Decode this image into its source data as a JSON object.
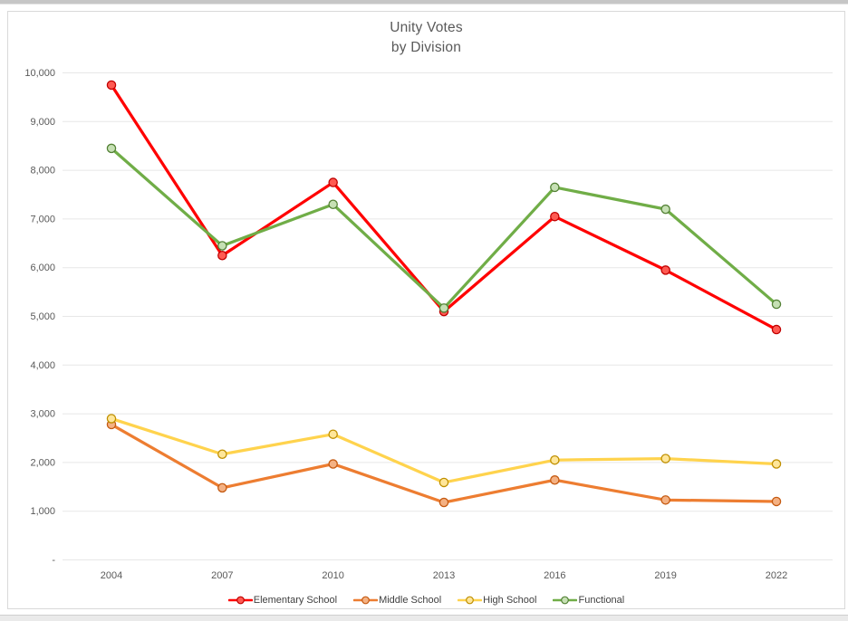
{
  "page": {
    "top_strip_color": "#c6c6c6",
    "bottom_strip_color": "#eaeaea",
    "chart_border_color": "#d9d9d9",
    "background_color": "#ffffff"
  },
  "chart": {
    "title_line1": "Unity Votes",
    "title_line2": "by Division",
    "title_color": "#595959",
    "axis_label_color": "#595959",
    "gridline_color": "#e7e7e7",
    "legend_text_color": "#3f3f3f"
  },
  "chart_data": {
    "type": "line",
    "title": "Unity Votes by Division",
    "xlabel": "",
    "ylabel": "",
    "categories": [
      "2004",
      "2007",
      "2010",
      "2013",
      "2016",
      "2019",
      "2022"
    ],
    "series": [
      {
        "name": "Elementary School",
        "color": "#ff0000",
        "marker_fill": "#ff5a52",
        "marker_stroke": "#c00000",
        "values": [
          9750,
          6250,
          7750,
          5100,
          7050,
          5950,
          4730
        ]
      },
      {
        "name": "Middle School",
        "color": "#ed7d31",
        "marker_fill": "#f4b183",
        "marker_stroke": "#c55a11",
        "values": [
          2780,
          1480,
          1970,
          1180,
          1640,
          1230,
          1200
        ]
      },
      {
        "name": "High School",
        "color": "#ffd34d",
        "marker_fill": "#ffe699",
        "marker_stroke": "#bf8f00",
        "values": [
          2900,
          2170,
          2580,
          1590,
          2050,
          2080,
          1970
        ]
      },
      {
        "name": "Functional",
        "color": "#70ad47",
        "marker_fill": "#c6e0b4",
        "marker_stroke": "#538135",
        "values": [
          8450,
          6450,
          7300,
          5170,
          7650,
          7200,
          5250
        ]
      }
    ],
    "ylim": [
      0,
      10000
    ],
    "ytick_interval": 1000,
    "ytick_labels": [
      "-",
      "1,000",
      "2,000",
      "3,000",
      "4,000",
      "5,000",
      "6,000",
      "7,000",
      "8,000",
      "9,000",
      "10,000"
    ],
    "grid": true,
    "legend_position": "bottom",
    "marker": "circle"
  }
}
